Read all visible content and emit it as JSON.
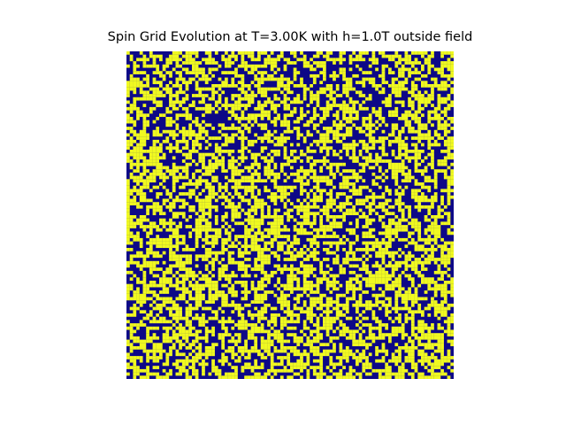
{
  "chart_data": {
    "type": "heatmap",
    "title": "Spin Grid Evolution at T=3.00K with h=1.0T outside field",
    "xlabel": "",
    "ylabel": "",
    "axes_visible": false,
    "grid": false,
    "legend": "none",
    "rows": 100,
    "cols": 100,
    "values_domain": [
      -1,
      1
    ],
    "up_spin_fraction": 0.55,
    "colors": {
      "spin_up": "#f0f921",
      "spin_down": "#0d0887"
    },
    "note_on_values": "individual cell states are not readable; field rendered as a seeded random lattice with the stated up-spin fraction"
  }
}
